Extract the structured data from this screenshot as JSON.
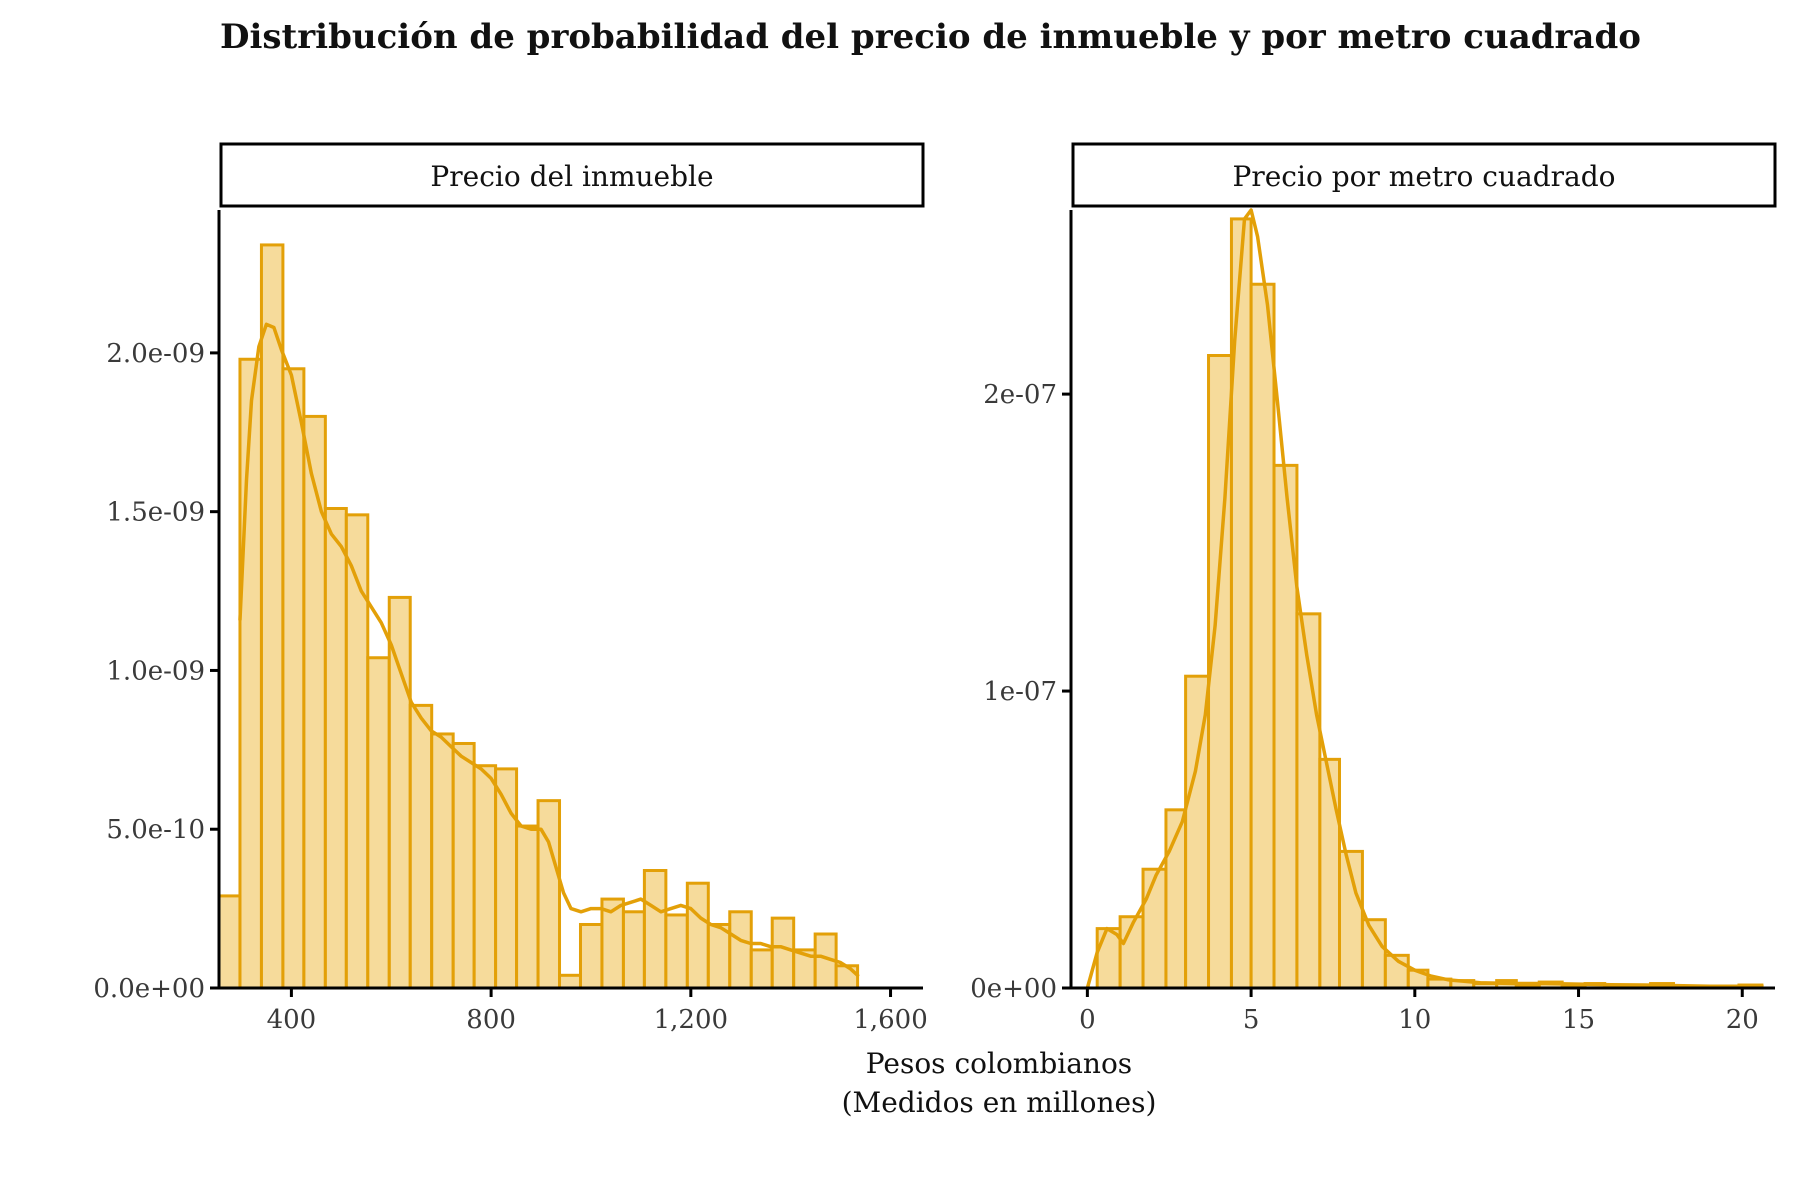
{
  "colors": {
    "bar_fill": "#f5d58a",
    "bar_stroke": "#e3a008",
    "density_line": "#e3a008",
    "axis": "#000000",
    "text": "#111111"
  },
  "figure": {
    "title": "Distribución de probabilidad del precio de inmueble y por metro cuadrado",
    "xlabel_line1": "Pesos colombianos",
    "xlabel_line2": "(Medidos en millones)"
  },
  "chart_data": [
    {
      "type": "bar",
      "title": "Precio del inmueble",
      "subtype": "histogram",
      "xlim": [
        255,
        1665
      ],
      "ylim": [
        0,
        2.45e-09
      ],
      "x_ticks": [
        400,
        800,
        1200,
        1600
      ],
      "x_tick_labels": [
        "400",
        "800",
        "1,200",
        "1,600"
      ],
      "y_ticks": [
        0,
        5e-10,
        1e-09,
        1.5e-09,
        2e-09
      ],
      "y_tick_labels": [
        "0.0e+00",
        "5.0e-10",
        "1.0e-09",
        "1.5e-09",
        "2.0e-09"
      ],
      "bin_width": 43,
      "bins": [
        {
          "x0": 255,
          "x1": 297,
          "y": 2.9e-10
        },
        {
          "x0": 297,
          "x1": 340,
          "y": 1.98e-09
        },
        {
          "x0": 340,
          "x1": 383,
          "y": 2.34e-09
        },
        {
          "x0": 383,
          "x1": 425,
          "y": 1.95e-09
        },
        {
          "x0": 425,
          "x1": 468,
          "y": 1.8e-09
        },
        {
          "x0": 468,
          "x1": 510,
          "y": 1.51e-09
        },
        {
          "x0": 510,
          "x1": 553,
          "y": 1.49e-09
        },
        {
          "x0": 553,
          "x1": 596,
          "y": 1.04e-09
        },
        {
          "x0": 596,
          "x1": 638,
          "y": 1.23e-09
        },
        {
          "x0": 638,
          "x1": 681,
          "y": 8.9e-10
        },
        {
          "x0": 681,
          "x1": 724,
          "y": 8e-10
        },
        {
          "x0": 724,
          "x1": 766,
          "y": 7.7e-10
        },
        {
          "x0": 766,
          "x1": 809,
          "y": 7e-10
        },
        {
          "x0": 809,
          "x1": 851,
          "y": 6.9e-10
        },
        {
          "x0": 851,
          "x1": 894,
          "y": 5.1e-10
        },
        {
          "x0": 894,
          "x1": 937,
          "y": 5.9e-10
        },
        {
          "x0": 937,
          "x1": 979,
          "y": 4e-11
        },
        {
          "x0": 979,
          "x1": 1022,
          "y": 2e-10
        },
        {
          "x0": 1022,
          "x1": 1065,
          "y": 2.8e-10
        },
        {
          "x0": 1065,
          "x1": 1107,
          "y": 2.4e-10
        },
        {
          "x0": 1107,
          "x1": 1150,
          "y": 3.7e-10
        },
        {
          "x0": 1150,
          "x1": 1193,
          "y": 2.3e-10
        },
        {
          "x0": 1193,
          "x1": 1235,
          "y": 3.3e-10
        },
        {
          "x0": 1235,
          "x1": 1278,
          "y": 2e-10
        },
        {
          "x0": 1278,
          "x1": 1321,
          "y": 2.4e-10
        },
        {
          "x0": 1321,
          "x1": 1363,
          "y": 1.2e-10
        },
        {
          "x0": 1363,
          "x1": 1406,
          "y": 2.2e-10
        },
        {
          "x0": 1406,
          "x1": 1449,
          "y": 1.2e-10
        },
        {
          "x0": 1449,
          "x1": 1491,
          "y": 1.7e-10
        },
        {
          "x0": 1491,
          "x1": 1534,
          "y": 7e-11
        }
      ],
      "density_curve": [
        [
          297,
          1.16e-09
        ],
        [
          310,
          1.6e-09
        ],
        [
          320,
          1.85e-09
        ],
        [
          335,
          2.02e-09
        ],
        [
          350,
          2.09e-09
        ],
        [
          365,
          2.08e-09
        ],
        [
          380,
          2.01e-09
        ],
        [
          400,
          1.93e-09
        ],
        [
          420,
          1.78e-09
        ],
        [
          440,
          1.62e-09
        ],
        [
          460,
          1.5e-09
        ],
        [
          480,
          1.43e-09
        ],
        [
          500,
          1.39e-09
        ],
        [
          520,
          1.33e-09
        ],
        [
          540,
          1.25e-09
        ],
        [
          560,
          1.2e-09
        ],
        [
          580,
          1.15e-09
        ],
        [
          600,
          1.08e-09
        ],
        [
          620,
          9.9e-10
        ],
        [
          640,
          9e-10
        ],
        [
          660,
          8.5e-10
        ],
        [
          680,
          8.1e-10
        ],
        [
          700,
          7.9e-10
        ],
        [
          720,
          7.6e-10
        ],
        [
          740,
          7.3e-10
        ],
        [
          760,
          7.1e-10
        ],
        [
          780,
          6.9e-10
        ],
        [
          800,
          6.6e-10
        ],
        [
          820,
          6.1e-10
        ],
        [
          840,
          5.5e-10
        ],
        [
          860,
          5.1e-10
        ],
        [
          880,
          5e-10
        ],
        [
          900,
          5e-10
        ],
        [
          915,
          4.6e-10
        ],
        [
          930,
          3.8e-10
        ],
        [
          945,
          3e-10
        ],
        [
          960,
          2.5e-10
        ],
        [
          980,
          2.4e-10
        ],
        [
          1000,
          2.5e-10
        ],
        [
          1020,
          2.5e-10
        ],
        [
          1040,
          2.4e-10
        ],
        [
          1060,
          2.6e-10
        ],
        [
          1080,
          2.7e-10
        ],
        [
          1100,
          2.8e-10
        ],
        [
          1120,
          2.6e-10
        ],
        [
          1140,
          2.4e-10
        ],
        [
          1160,
          2.5e-10
        ],
        [
          1180,
          2.6e-10
        ],
        [
          1200,
          2.5e-10
        ],
        [
          1220,
          2.2e-10
        ],
        [
          1240,
          2e-10
        ],
        [
          1260,
          1.9e-10
        ],
        [
          1280,
          1.7e-10
        ],
        [
          1300,
          1.5e-10
        ],
        [
          1320,
          1.4e-10
        ],
        [
          1340,
          1.4e-10
        ],
        [
          1360,
          1.3e-10
        ],
        [
          1380,
          1.3e-10
        ],
        [
          1400,
          1.2e-10
        ],
        [
          1420,
          1.1e-10
        ],
        [
          1440,
          1e-10
        ],
        [
          1460,
          1e-10
        ],
        [
          1480,
          9e-11
        ],
        [
          1500,
          8e-11
        ],
        [
          1520,
          6e-11
        ],
        [
          1534,
          4e-11
        ]
      ]
    },
    {
      "type": "bar",
      "title": "Precio por metro cuadrado",
      "subtype": "histogram",
      "xlim": [
        -0.5,
        21
      ],
      "ylim": [
        0,
        2.62e-07
      ],
      "x_ticks": [
        0,
        5,
        10,
        15,
        20
      ],
      "x_tick_labels": [
        "0",
        "5",
        "10",
        "15",
        "20"
      ],
      "y_ticks": [
        0,
        1e-07,
        2e-07
      ],
      "y_tick_labels": [
        "0e+00",
        "1e-07",
        "2e-07"
      ],
      "bin_width": 0.68,
      "bins": [
        {
          "x0": 0.3,
          "x1": 1.0,
          "y": 2e-08
        },
        {
          "x0": 1.0,
          "x1": 1.7,
          "y": 2.4e-08
        },
        {
          "x0": 1.7,
          "x1": 2.4,
          "y": 4e-08
        },
        {
          "x0": 2.4,
          "x1": 3.0,
          "y": 6e-08
        },
        {
          "x0": 3.0,
          "x1": 3.7,
          "y": 1.05e-07
        },
        {
          "x0": 3.7,
          "x1": 4.4,
          "y": 2.13e-07
        },
        {
          "x0": 4.4,
          "x1": 5.0,
          "y": 2.59e-07
        },
        {
          "x0": 5.0,
          "x1": 5.7,
          "y": 2.37e-07
        },
        {
          "x0": 5.7,
          "x1": 6.4,
          "y": 1.76e-07
        },
        {
          "x0": 6.4,
          "x1": 7.1,
          "y": 1.26e-07
        },
        {
          "x0": 7.1,
          "x1": 7.7,
          "y": 7.7e-08
        },
        {
          "x0": 7.7,
          "x1": 8.4,
          "y": 4.6e-08
        },
        {
          "x0": 8.4,
          "x1": 9.1,
          "y": 2.3e-08
        },
        {
          "x0": 9.1,
          "x1": 9.8,
          "y": 1.1e-08
        },
        {
          "x0": 9.8,
          "x1": 10.4,
          "y": 6e-09
        },
        {
          "x0": 10.4,
          "x1": 11.1,
          "y": 3e-09
        },
        {
          "x0": 11.1,
          "x1": 11.8,
          "y": 2.5e-09
        },
        {
          "x0": 11.8,
          "x1": 12.5,
          "y": 1.5e-09
        },
        {
          "x0": 12.5,
          "x1": 13.1,
          "y": 2.5e-09
        },
        {
          "x0": 13.1,
          "x1": 13.8,
          "y": 1e-09
        },
        {
          "x0": 13.8,
          "x1": 14.5,
          "y": 2e-09
        },
        {
          "x0": 14.5,
          "x1": 15.2,
          "y": 1e-09
        },
        {
          "x0": 15.2,
          "x1": 15.8,
          "y": 1.5e-09
        },
        {
          "x0": 15.8,
          "x1": 16.5,
          "y": 1e-09
        },
        {
          "x0": 16.5,
          "x1": 17.2,
          "y": 1e-09
        },
        {
          "x0": 17.2,
          "x1": 17.9,
          "y": 1.5e-09
        },
        {
          "x0": 17.9,
          "x1": 18.5,
          "y": 5e-10
        },
        {
          "x0": 18.5,
          "x1": 19.2,
          "y": 5e-10
        },
        {
          "x0": 19.2,
          "x1": 19.9,
          "y": 5e-10
        },
        {
          "x0": 19.9,
          "x1": 20.6,
          "y": 1e-09
        }
      ],
      "density_curve": [
        [
          0.0,
          0.0
        ],
        [
          0.3,
          1.2e-08
        ],
        [
          0.6,
          2e-08
        ],
        [
          0.9,
          1.8e-08
        ],
        [
          1.1,
          1.5e-08
        ],
        [
          1.4,
          2.2e-08
        ],
        [
          1.8,
          3e-08
        ],
        [
          2.1,
          3.8e-08
        ],
        [
          2.5,
          4.6e-08
        ],
        [
          2.9,
          5.6e-08
        ],
        [
          3.3,
          7.3e-08
        ],
        [
          3.6,
          9.2e-08
        ],
        [
          3.9,
          1.22e-07
        ],
        [
          4.2,
          1.65e-07
        ],
        [
          4.5,
          2.18e-07
        ],
        [
          4.8,
          2.59e-07
        ],
        [
          5.0,
          2.62e-07
        ],
        [
          5.2,
          2.53e-07
        ],
        [
          5.5,
          2.3e-07
        ],
        [
          5.8,
          1.98e-07
        ],
        [
          6.1,
          1.65e-07
        ],
        [
          6.4,
          1.35e-07
        ],
        [
          6.7,
          1.12e-07
        ],
        [
          7.0,
          9.2e-08
        ],
        [
          7.3,
          7.6e-08
        ],
        [
          7.6,
          6e-08
        ],
        [
          7.9,
          4.5e-08
        ],
        [
          8.2,
          3.2e-08
        ],
        [
          8.6,
          2.1e-08
        ],
        [
          9.0,
          1.4e-08
        ],
        [
          9.5,
          9e-09
        ],
        [
          10.0,
          6e-09
        ],
        [
          10.5,
          4e-09
        ],
        [
          11.0,
          2.8e-09
        ],
        [
          12.0,
          1.8e-09
        ],
        [
          13.0,
          1.5e-09
        ],
        [
          14.0,
          1.5e-09
        ],
        [
          15.0,
          1.3e-09
        ],
        [
          16.0,
          1.1e-09
        ],
        [
          17.0,
          1e-09
        ],
        [
          18.0,
          8e-10
        ],
        [
          19.0,
          6e-10
        ],
        [
          20.0,
          6e-10
        ],
        [
          20.6,
          8e-10
        ]
      ]
    }
  ]
}
